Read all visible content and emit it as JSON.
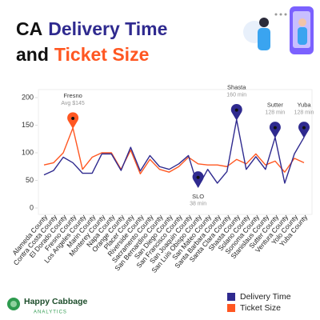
{
  "chart_data": {
    "type": "line",
    "title": [
      "CA",
      "Delivery Time",
      "and",
      "Ticket Size"
    ],
    "categories": [
      "Alameda County",
      "Contra Costa County",
      "El Dorado County",
      "Fresno County",
      "Los Angeles County",
      "Marin County",
      "Monterey County",
      "Napa County",
      "Orange County",
      "Placer County",
      "Riverside County",
      "Sacramento County",
      "San Bernardino County",
      "San Diego County",
      "San Francisco County",
      "San Joaquin County",
      "San Luis Obispo County",
      "San Mateo County",
      "Santa Barbara County",
      "Santa Clara County",
      "Shasta County",
      "Solano County",
      "Sonoma County",
      "Stanislaus County",
      "Sutter County",
      "Ventura County",
      "Yolo County",
      "Yuba County"
    ],
    "series": [
      {
        "name": "Delivery Time",
        "color": "#2f2a8f",
        "values": [
          60,
          68,
          92,
          82,
          63,
          63,
          98,
          98,
          68,
          110,
          67,
          95,
          75,
          70,
          80,
          95,
          38,
          70,
          45,
          66,
          160,
          70,
          93,
          70,
          128,
          45,
          98,
          128
        ]
      },
      {
        "name": "Ticket Size",
        "color": "#ff5722",
        "values": [
          78,
          82,
          100,
          145,
          70,
          92,
          100,
          100,
          70,
          105,
          62,
          88,
          70,
          65,
          75,
          92,
          80,
          78,
          78,
          75,
          88,
          80,
          98,
          78,
          85,
          65,
          90,
          82
        ]
      }
    ],
    "annotations": [
      {
        "category": "Fresno County",
        "series": "Ticket Size",
        "label": "Fresno",
        "sublabel": "Avg $145",
        "position": "above"
      },
      {
        "category": "San Luis Obispo County",
        "series": "Delivery Time",
        "label": "SLO",
        "sublabel": "38 min",
        "position": "below"
      },
      {
        "category": "Shasta County",
        "series": "Delivery Time",
        "label": "Shasta",
        "sublabel": "160 min",
        "position": "above"
      },
      {
        "category": "Sutter County",
        "series": "Delivery Time",
        "label": "Sutter",
        "sublabel": "128 min",
        "position": "above"
      },
      {
        "category": "Yuba County",
        "series": "Delivery Time",
        "label": "Yuba",
        "sublabel": "128 min",
        "position": "above"
      }
    ],
    "ylim": [
      0,
      200
    ],
    "yticks": [
      0,
      50,
      100,
      150,
      200
    ],
    "grid": false,
    "brand": {
      "name": "Happy Cabbage",
      "tagline": "ANALYTICS"
    }
  }
}
